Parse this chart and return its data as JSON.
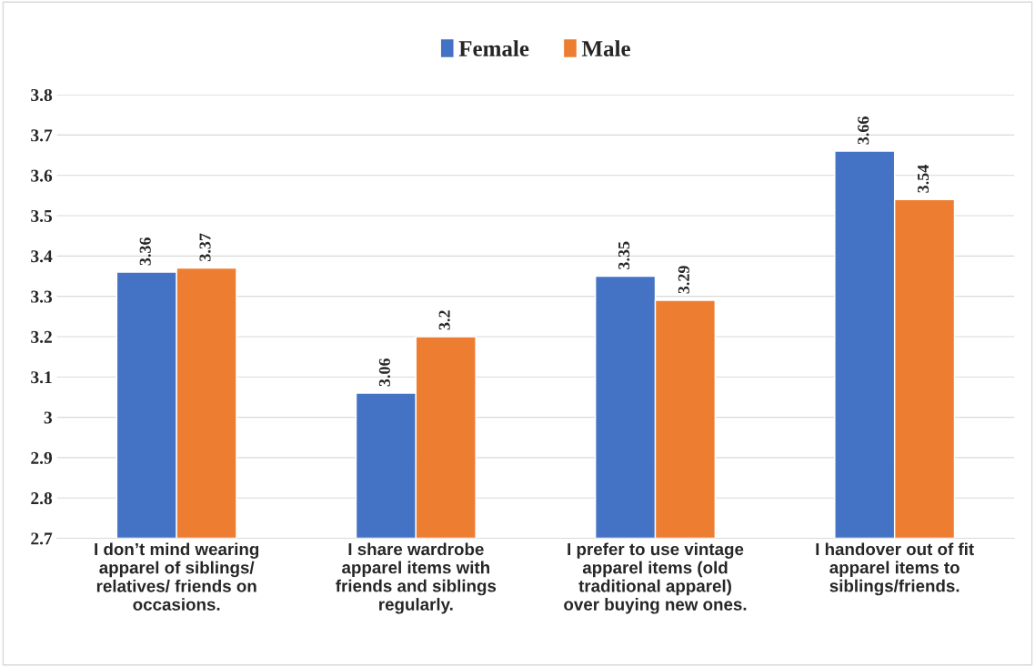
{
  "chart_data": {
    "type": "bar",
    "categories": [
      "I don’t mind wearing apparel of siblings/ relatives/ friends on occasions.",
      "I share wardrobe apparel items with friends and siblings regularly.",
      "I prefer to use vintage apparel items (old traditional apparel) over buying new ones.",
      "I handover out of fit apparel items to siblings/friends."
    ],
    "series": [
      {
        "name": "Female",
        "color": "#4472c4",
        "values": [
          3.36,
          3.06,
          3.35,
          3.66
        ]
      },
      {
        "name": "Male",
        "color": "#ed7d31",
        "values": [
          3.37,
          3.2,
          3.29,
          3.54
        ]
      }
    ],
    "ylim": [
      2.7,
      3.8
    ],
    "yticks": [
      2.7,
      2.8,
      2.9,
      3,
      3.1,
      3.2,
      3.3,
      3.4,
      3.5,
      3.6,
      3.7,
      3.8
    ],
    "grid": "y",
    "legend": "top",
    "data_labels": true
  }
}
